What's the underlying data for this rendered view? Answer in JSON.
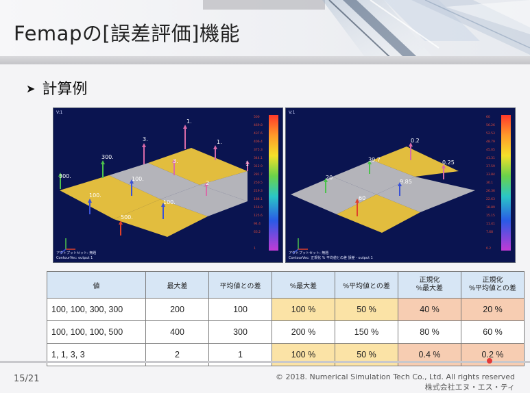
{
  "slide": {
    "title": "Femapの[誤差評価]機能",
    "bullet": "計算例",
    "page_number": "15/21",
    "copyright_line1": "© 2018. Numerical Simulation Tech Co., Ltd.  All rights reserved",
    "copyright_line2": "株式会社エヌ・エス・ティ"
  },
  "left_model": {
    "view_label": "V:1",
    "footer_line1": "アウトプットセット: 無題",
    "footer_line2": "ContourVec: output 1",
    "legend_values": [
      "500",
      "469.8",
      "437.6",
      "406.4",
      "375.3",
      "344.1",
      "312.9",
      "281.7",
      "250.5",
      "219.3",
      "188.1",
      "156.9",
      "125.6",
      "94.4",
      "63.2",
      "1"
    ],
    "arrow_labels": [
      "300.",
      "300.",
      "3.",
      "1.",
      "1.",
      "1",
      "3.",
      "100.",
      "2",
      "100.",
      "100.",
      "500."
    ]
  },
  "right_model": {
    "view_label": "V:1",
    "footer_line1": "アウトプットセット: 無題",
    "footer_line2": "ContourVec: 正規化 % 平均値との差 誤差 - output 1",
    "legend_values": [
      "60",
      "56.26",
      "52.53",
      "48.79",
      "45.05",
      "41.31",
      "37.59",
      "33.84",
      "30.1",
      "26.36",
      "22.63",
      "18.89",
      "15.15",
      "11.41",
      "7.68",
      "0.2"
    ],
    "arrow_labels": [
      "0.2",
      "39.7",
      "0.25",
      "20",
      "9.85",
      "60"
    ]
  },
  "table": {
    "headers": [
      "値",
      "最大差",
      "平均値との差",
      "%最大差",
      "%平均値との差",
      "正規化\n%最大差",
      "正規化\n%平均値との差"
    ],
    "rows": [
      [
        "100, 100, 300, 300",
        "200",
        "100",
        "100 %",
        "50 %",
        "40 %",
        "20 %"
      ],
      [
        "100, 100, 100, 500",
        "400",
        "300",
        "200 %",
        "150 %",
        "80 %",
        "60 %"
      ],
      [
        "1, 1, 3, 3",
        "2",
        "1",
        "100 %",
        "50 %",
        "0.4 %",
        "0.2 %"
      ]
    ]
  },
  "colors": {
    "viewport_bg": "#0a1450",
    "plate_yellow": "#e2bd3e",
    "plate_gray": "#b4b4ba",
    "header_blue": "#d7e6f5",
    "cell_yellow": "#fbe3a6",
    "cell_orange": "#f7cdb2"
  }
}
